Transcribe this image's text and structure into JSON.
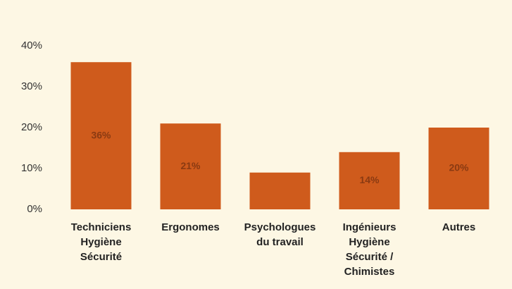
{
  "chart_data": {
    "type": "bar",
    "categories": [
      "Techniciens\nHygiène\nSécurité",
      "Ergonomes",
      "Psychologues\ndu travail",
      "Ingénieurs\nHygiène\nSécurité /\nChimistes",
      "Autres"
    ],
    "values": [
      36,
      21,
      9,
      14,
      20
    ],
    "value_labels": [
      "36%",
      "21%",
      null,
      "14%",
      "20%"
    ],
    "color": "#cf5b1c",
    "ylim": [
      0,
      40
    ],
    "yticks": [
      {
        "value": 0,
        "label": "0%"
      },
      {
        "value": 10,
        "label": "10%"
      },
      {
        "value": 20,
        "label": "20%"
      },
      {
        "value": 30,
        "label": "30%"
      },
      {
        "value": 40,
        "label": "40%"
      }
    ],
    "grid": false
  }
}
